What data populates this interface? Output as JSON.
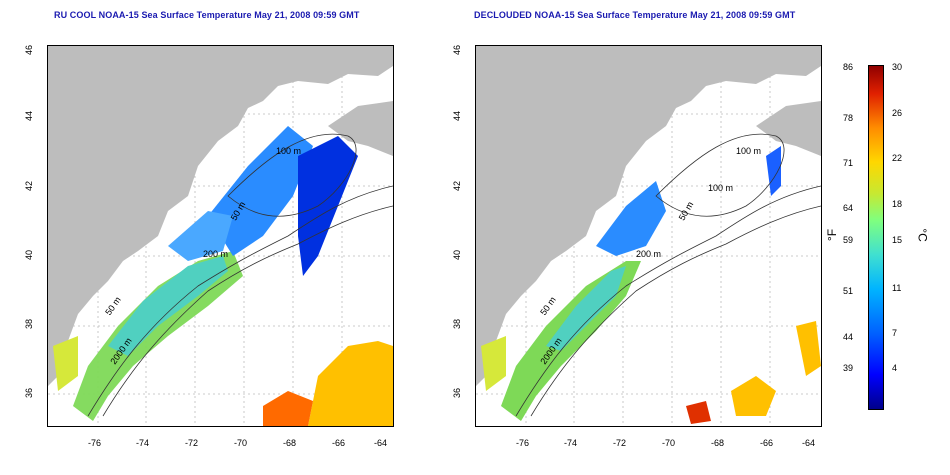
{
  "titles": {
    "left": "RU COOL NOAA-15 Sea Surface Temperature May 21, 2008 09:59 GMT",
    "right": "DECLOUDED NOAA-15 Sea Surface Temperature May 21, 2008 09:59 GMT"
  },
  "axes": {
    "lat_ticks": [
      "46",
      "44",
      "42",
      "40",
      "38",
      "36"
    ],
    "lon_ticks": [
      "-76",
      "-74",
      "-72",
      "-70",
      "-68",
      "-66",
      "-64"
    ]
  },
  "contours": {
    "left": [
      "100 m",
      "50 m",
      "200 m",
      "50 m",
      "2000 m"
    ],
    "right": [
      "100 m",
      "100 m",
      "50 m",
      "200 m",
      "50 m",
      "2000 m"
    ]
  },
  "colorbar": {
    "fahrenheit_ticks": [
      "86",
      "78",
      "71",
      "64",
      "59",
      "51",
      "44",
      "39"
    ],
    "celsius_ticks": [
      "30",
      "26",
      "22",
      "18",
      "15",
      "11",
      "7",
      "4"
    ],
    "fahrenheit_unit": "°F",
    "celsius_unit": "°C"
  },
  "colors": {
    "title": "#1a1ab0",
    "land": "#bdbdbd",
    "cold": "#0000ff",
    "warm": "#e02000"
  }
}
